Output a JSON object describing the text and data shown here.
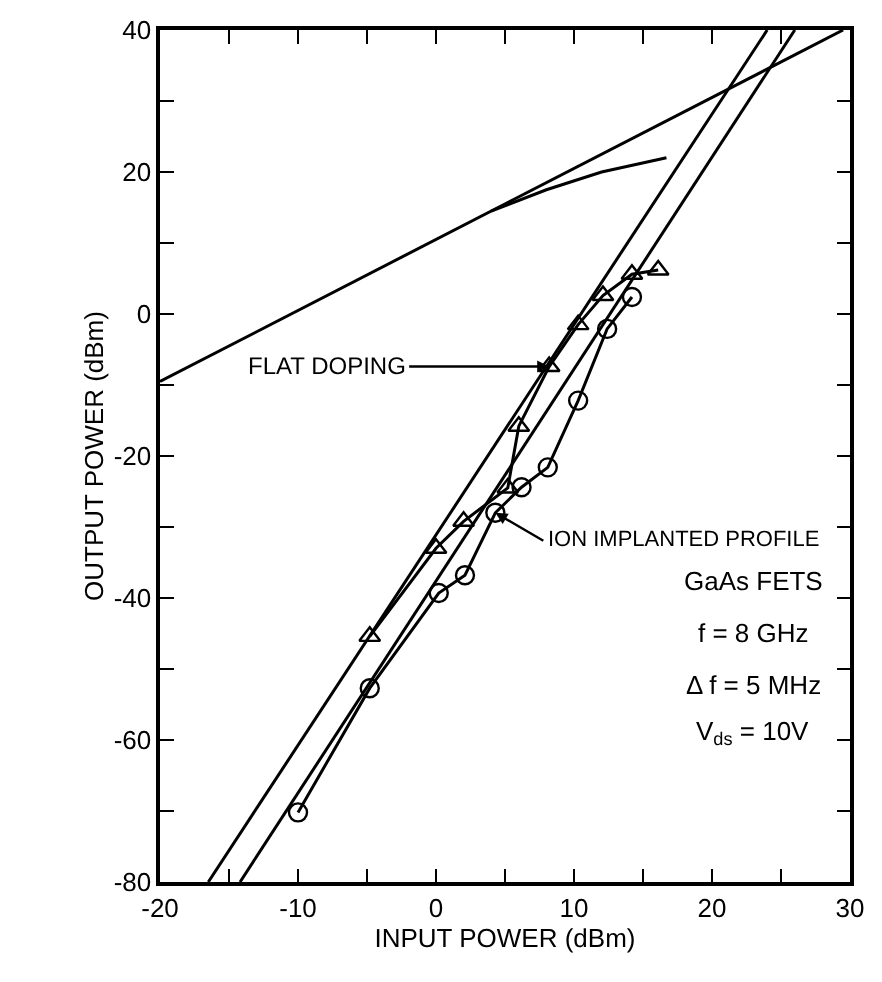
{
  "chart_data": {
    "type": "line",
    "xlabel": "INPUT POWER (dBm)",
    "ylabel": "OUTPUT POWER (dBm)",
    "xlim": [
      -20,
      30
    ],
    "ylim": [
      -80,
      40
    ],
    "xticks": [
      -20,
      {
        "value": -15,
        "label": null
      },
      -10,
      {
        "value": -5,
        "label": null
      },
      0,
      {
        "value": 5,
        "label": null
      },
      10,
      {
        "value": 15,
        "label": null
      },
      20,
      {
        "value": 25,
        "label": null
      },
      30
    ],
    "yticks": [
      -80,
      {
        "value": -70,
        "label": null
      },
      -60,
      {
        "value": -50,
        "label": null
      },
      -40,
      {
        "value": -30,
        "label": null
      },
      -20,
      {
        "value": -10,
        "label": null
      },
      0,
      {
        "value": 10,
        "label": null
      },
      20,
      {
        "value": 30,
        "label": null
      },
      40
    ],
    "series": [
      {
        "color": "#000000",
        "marker": "none",
        "x": [
          -20,
          29.5
        ],
        "values": [
          -9.5,
          40
        ]
      },
      {
        "color": "#000000",
        "marker": "none",
        "x": [
          4,
          8,
          12,
          16.7
        ],
        "values": [
          14.5,
          17.5,
          20,
          22
        ]
      },
      {
        "color": "#000000",
        "marker": "none",
        "x": [
          -16.5,
          24
        ],
        "values": [
          -80,
          40
        ]
      },
      {
        "color": "#000000",
        "marker": "none",
        "x": [
          -14.2,
          26
        ],
        "values": [
          -80,
          40
        ]
      },
      {
        "color": "#000000",
        "marker": "triangle",
        "x": [
          -4.8,
          0,
          2,
          5.2,
          6,
          8.2,
          10.3,
          12.1,
          14.2,
          16.1
        ],
        "values": [
          -45.4,
          -33,
          -29.2,
          -24.5,
          -15.8,
          -7.4,
          -1.5,
          2.6,
          5.6,
          6.2
        ]
      },
      {
        "color": "#000000",
        "marker": "circle",
        "x": [
          -10,
          -4.8,
          0.2,
          2.1,
          4.3,
          6.2,
          8.1,
          10.3,
          12.4,
          14.2
        ],
        "values": [
          -70.2,
          -52.7,
          -39.3,
          -36.8,
          -28,
          -24.4,
          -21.6,
          -12.2,
          -2.1,
          2.4
        ]
      }
    ],
    "annotations": [
      {
        "text": "FLAT DOPING",
        "x": 8.2,
        "y": -7.4
      },
      {
        "text": "ION IMPLANTED PROFILE",
        "x": 4.3,
        "y": -28
      },
      "GaAs FETS",
      "f = 8 GHz",
      "Δ f = 5 MHz",
      "V$_{ds}$ = 10V"
    ]
  }
}
